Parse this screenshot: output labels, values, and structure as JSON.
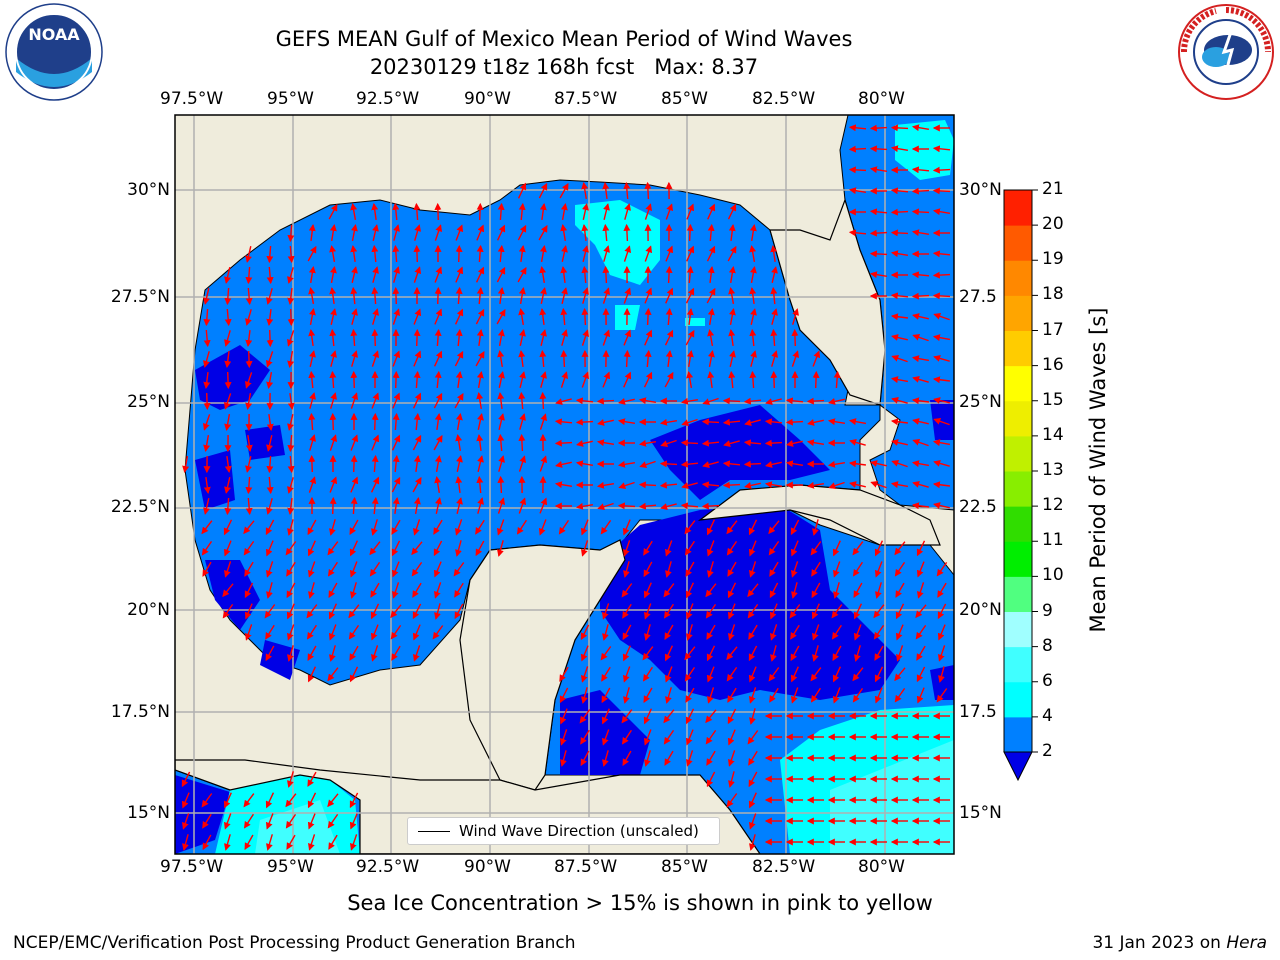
{
  "title": {
    "line1": "GEFS MEAN Gulf of Mexico Mean Period of Wind Waves",
    "line2": "20230129 t18z 168h fcst   Max: 8.37"
  },
  "logos": {
    "left": {
      "icon": "noaa-logo",
      "text": "NOAA"
    },
    "right": {
      "icon": "nws-logo",
      "ring_text": "NATIONAL WEATHER SERVICE"
    }
  },
  "map": {
    "lon_labels": [
      "97.5°W",
      "95°W",
      "92.5°W",
      "90°W",
      "87.5°W",
      "85°W",
      "82.5°W",
      "80°W"
    ],
    "lat_labels_left": [
      "30°N",
      "27.5°N",
      "25°N",
      "22.5°N",
      "20°N",
      "17.5°N",
      "15°N"
    ],
    "lat_labels_right": [
      "30°N",
      "27.5",
      "25°N",
      "22.5",
      "20°N",
      "17.5",
      "15°N"
    ],
    "lon_extent": [
      -98.1,
      -78.4
    ],
    "lat_extent": [
      14.0,
      31.8
    ],
    "colors": {
      "land": "#efecdc",
      "coast": "#000000",
      "grid": "#b0b0b0",
      "arrow": "#ff0000"
    },
    "legend": {
      "label": "Wind Wave Direction (unscaled)"
    }
  },
  "colorbar": {
    "label": "Mean Period of Wind Waves [s]",
    "ticks": [
      "2",
      "4",
      "6",
      "8",
      "9",
      "10",
      "11",
      "12",
      "13",
      "14",
      "15",
      "16",
      "17",
      "18",
      "19",
      "20",
      "21"
    ],
    "under_color": "#0000e6",
    "colors": [
      "#0080ff",
      "#00ffff",
      "#40ffff",
      "#a0ffff",
      "#50ff80",
      "#00ee00",
      "#30dd00",
      "#88ee00",
      "#c0f000",
      "#eeee00",
      "#ffff00",
      "#ffcc00",
      "#ffa500",
      "#ff8800",
      "#ff5a00",
      "#ff2000",
      "#ff0000"
    ]
  },
  "notes": {
    "ice": "Sea Ice Concentration > 15% is shown in pink to yellow"
  },
  "footer": {
    "left": "NCEP/EMC/Verification Post Processing Product Generation Branch",
    "right_prefix": "31 Jan 2023 on ",
    "right_host": "Hera"
  }
}
